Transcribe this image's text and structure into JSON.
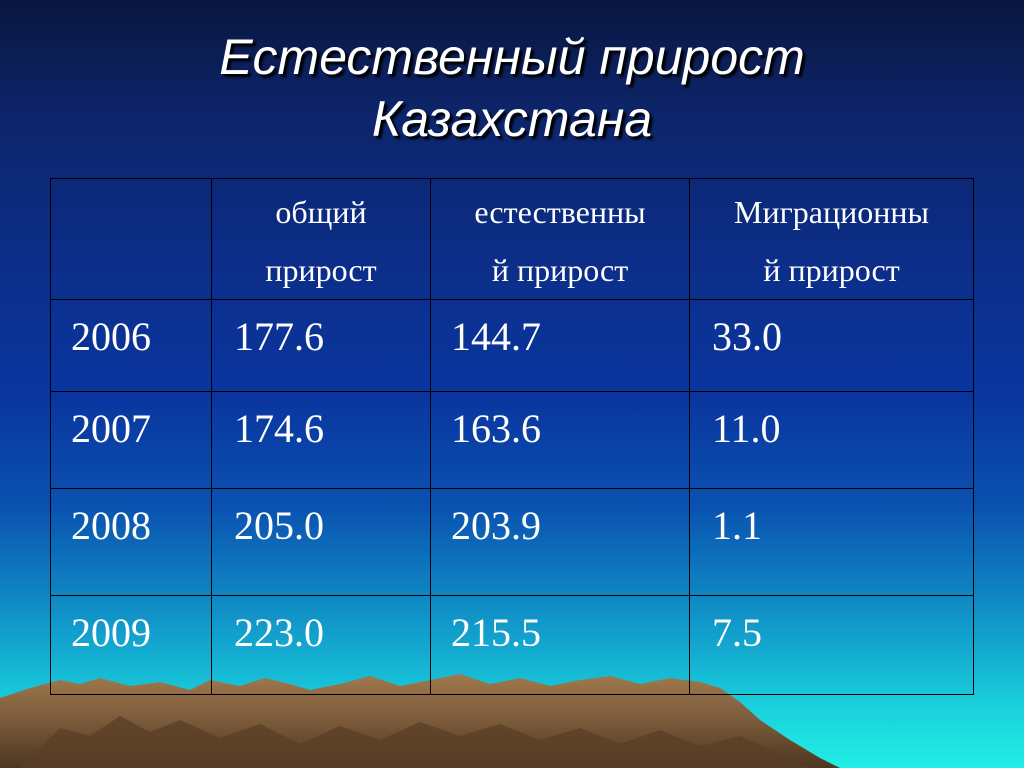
{
  "title": {
    "line1": "Естественный прирост",
    "line2": "Казахстана"
  },
  "table": {
    "headers": [
      {
        "line1": "",
        "line2": ""
      },
      {
        "line1": "общий",
        "line2": "прирост"
      },
      {
        "line1": "естественны",
        "line2": "й прирост"
      },
      {
        "line1": "Миграционны",
        "line2": "й прирост"
      }
    ],
    "rows": [
      {
        "year": "2006",
        "total": "177.6",
        "natural": "144.7",
        "migration": "33.0"
      },
      {
        "year": "2007",
        "total": "174.6",
        "natural": "163.6",
        "migration": "11.0"
      },
      {
        "year": "2008",
        "total": "205.0",
        "natural": "203.9",
        "migration": "1.1"
      },
      {
        "year": "2009",
        "total": "223.0",
        "natural": "215.5",
        "migration": "7.5"
      }
    ]
  },
  "colors": {
    "background_top": "#0a1640",
    "background_mid": "#0a36a0",
    "background_bottom": "#22eee6",
    "text": "#ffffff",
    "title_shadow": "#000000",
    "mountain": "#7a5a3a"
  },
  "decor": {
    "mountains": "mountain-range-graphic"
  }
}
